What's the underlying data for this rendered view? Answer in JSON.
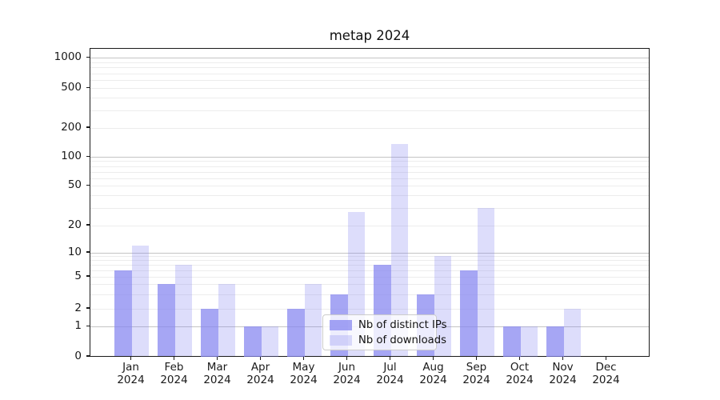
{
  "title": "metap 2024",
  "chart_data": {
    "type": "bar",
    "title": "metap 2024",
    "categories": [
      "Jan",
      "Feb",
      "Mar",
      "Apr",
      "May",
      "Jun",
      "Jul",
      "Aug",
      "Sep",
      "Oct",
      "Nov",
      "Dec"
    ],
    "year_label": "2024",
    "series": [
      {
        "name": "Nb of distinct IPs",
        "color": "rgba(132,132,240,0.72)",
        "color_hex_on_white": "#a6a6f4",
        "values": [
          6,
          4,
          2,
          1,
          2,
          3,
          7,
          3,
          6,
          1,
          1,
          0
        ]
      },
      {
        "name": "Nb of downloads",
        "color": "rgba(132,132,240,0.28)",
        "color_hex_on_white": "#dcdcfa",
        "values": [
          12,
          7,
          4,
          1,
          4,
          27,
          136,
          9,
          30,
          1,
          2,
          0
        ]
      }
    ],
    "y_axis": {
      "scale": "symlog",
      "tick_values": [
        0,
        1,
        2,
        5,
        10,
        20,
        50,
        100,
        200,
        500,
        1000
      ],
      "tick_labels": [
        "0",
        "1",
        "2",
        "5",
        "10",
        "20",
        "50",
        "100",
        "200",
        "500",
        "1000"
      ],
      "major_gridline_values": [
        1,
        10,
        100,
        1000
      ],
      "ylim": [
        0,
        1400
      ]
    },
    "grid": "on",
    "legend": {
      "position": "lower center",
      "entries": [
        "Nb of distinct IPs",
        "Nb of downloads"
      ]
    }
  }
}
